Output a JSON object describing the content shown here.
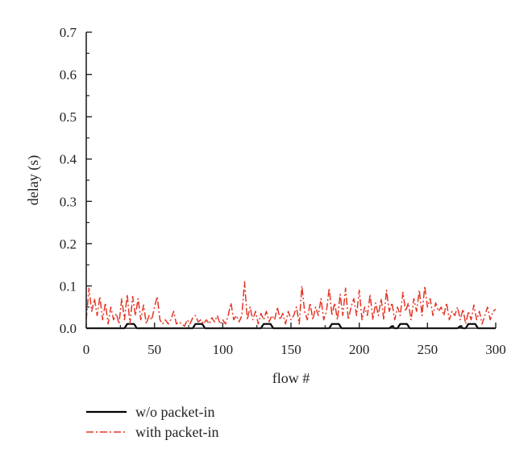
{
  "chart_data": {
    "type": "line",
    "xlabel": "flow #",
    "ylabel": "delay (s)",
    "xlim": [
      0,
      300
    ],
    "ylim": [
      0,
      0.7
    ],
    "x_ticks": [
      0,
      50,
      100,
      150,
      200,
      250,
      300
    ],
    "y_ticks": [
      0.0,
      0.1,
      0.2,
      0.3,
      0.4,
      0.5,
      0.6,
      0.7
    ],
    "x_tick_labels": [
      "0",
      "50",
      "100",
      "150",
      "200",
      "250",
      "300"
    ],
    "y_tick_labels": [
      "0.0",
      "0.1",
      "0.2",
      "0.3",
      "0.4",
      "0.5",
      "0.6",
      "0.7"
    ],
    "grid": false,
    "legend_position": "bottom-left, below plot",
    "series": [
      {
        "name": "w/o packet-in",
        "color": "#000000",
        "style": "solid",
        "x": [
          0,
          28,
          30,
          35,
          37,
          78,
          80,
          85,
          87,
          128,
          130,
          135,
          137,
          178,
          180,
          185,
          187,
          222,
          224,
          226,
          228,
          230,
          235,
          237,
          272,
          274,
          276,
          278,
          280,
          285,
          287,
          300
        ],
        "y": [
          0.0,
          0.0,
          0.01,
          0.01,
          0.0,
          0.0,
          0.01,
          0.01,
          0.0,
          0.0,
          0.01,
          0.01,
          0.0,
          0.0,
          0.01,
          0.01,
          0.0,
          0.0,
          0.005,
          0.0,
          0.0,
          0.01,
          0.01,
          0.0,
          0.0,
          0.005,
          0.0,
          0.0,
          0.01,
          0.01,
          0.0,
          0.0
        ]
      },
      {
        "name": "with packet-in",
        "color": "#e53525",
        "style": "dash-dot",
        "x": [
          0,
          2,
          4,
          6,
          8,
          10,
          12,
          14,
          16,
          18,
          20,
          22,
          24,
          26,
          28,
          30,
          32,
          34,
          36,
          38,
          40,
          42,
          44,
          46,
          48,
          50,
          52,
          54,
          56,
          58,
          60,
          62,
          64,
          66,
          68,
          70,
          72,
          74,
          76,
          78,
          80,
          82,
          84,
          86,
          88,
          90,
          92,
          94,
          96,
          98,
          100,
          102,
          104,
          106,
          108,
          110,
          112,
          114,
          116,
          118,
          120,
          122,
          124,
          126,
          128,
          130,
          132,
          134,
          136,
          138,
          140,
          142,
          144,
          146,
          148,
          150,
          152,
          154,
          156,
          158,
          160,
          162,
          164,
          166,
          168,
          170,
          172,
          174,
          176,
          178,
          180,
          182,
          184,
          186,
          188,
          190,
          192,
          194,
          196,
          198,
          200,
          202,
          204,
          206,
          208,
          210,
          212,
          214,
          216,
          218,
          220,
          222,
          224,
          226,
          228,
          230,
          232,
          234,
          236,
          238,
          240,
          242,
          244,
          246,
          248,
          250,
          252,
          254,
          256,
          258,
          260,
          262,
          264,
          266,
          268,
          270,
          272,
          274,
          276,
          278,
          280,
          282,
          284,
          286,
          288,
          290,
          292,
          294,
          296,
          298,
          300
        ],
        "y": [
          0.02,
          0.095,
          0.04,
          0.07,
          0.03,
          0.075,
          0.02,
          0.06,
          0.01,
          0.05,
          0.02,
          0.035,
          0.01,
          0.07,
          0.02,
          0.08,
          0.01,
          0.075,
          0.03,
          0.07,
          0.02,
          0.055,
          0.01,
          0.03,
          0.02,
          0.05,
          0.075,
          0.02,
          0.01,
          0.02,
          0.01,
          0.02,
          0.04,
          0.01,
          0.015,
          0.01,
          0.005,
          0.02,
          0.01,
          0.025,
          0.03,
          0.015,
          0.02,
          0.01,
          0.02,
          0.01,
          0.025,
          0.015,
          0.03,
          0.01,
          0.02,
          0.01,
          0.03,
          0.06,
          0.02,
          0.03,
          0.015,
          0.03,
          0.11,
          0.02,
          0.05,
          0.02,
          0.04,
          0.01,
          0.035,
          0.02,
          0.04,
          0.015,
          0.03,
          0.02,
          0.05,
          0.02,
          0.035,
          0.01,
          0.04,
          0.02,
          0.03,
          0.05,
          0.01,
          0.1,
          0.04,
          0.02,
          0.06,
          0.02,
          0.05,
          0.03,
          0.07,
          0.02,
          0.04,
          0.095,
          0.03,
          0.06,
          0.02,
          0.08,
          0.03,
          0.095,
          0.02,
          0.05,
          0.07,
          0.03,
          0.09,
          0.02,
          0.05,
          0.03,
          0.08,
          0.02,
          0.06,
          0.03,
          0.07,
          0.02,
          0.09,
          0.04,
          0.06,
          0.02,
          0.05,
          0.03,
          0.085,
          0.04,
          0.06,
          0.02,
          0.07,
          0.04,
          0.09,
          0.03,
          0.1,
          0.05,
          0.07,
          0.03,
          0.06,
          0.04,
          0.05,
          0.03,
          0.06,
          0.02,
          0.04,
          0.03,
          0.05,
          0.02,
          0.045,
          0.01,
          0.04,
          0.02,
          0.055,
          0.02,
          0.04,
          0.01,
          0.03,
          0.05,
          0.02,
          0.04,
          0.045
        ]
      }
    ]
  }
}
